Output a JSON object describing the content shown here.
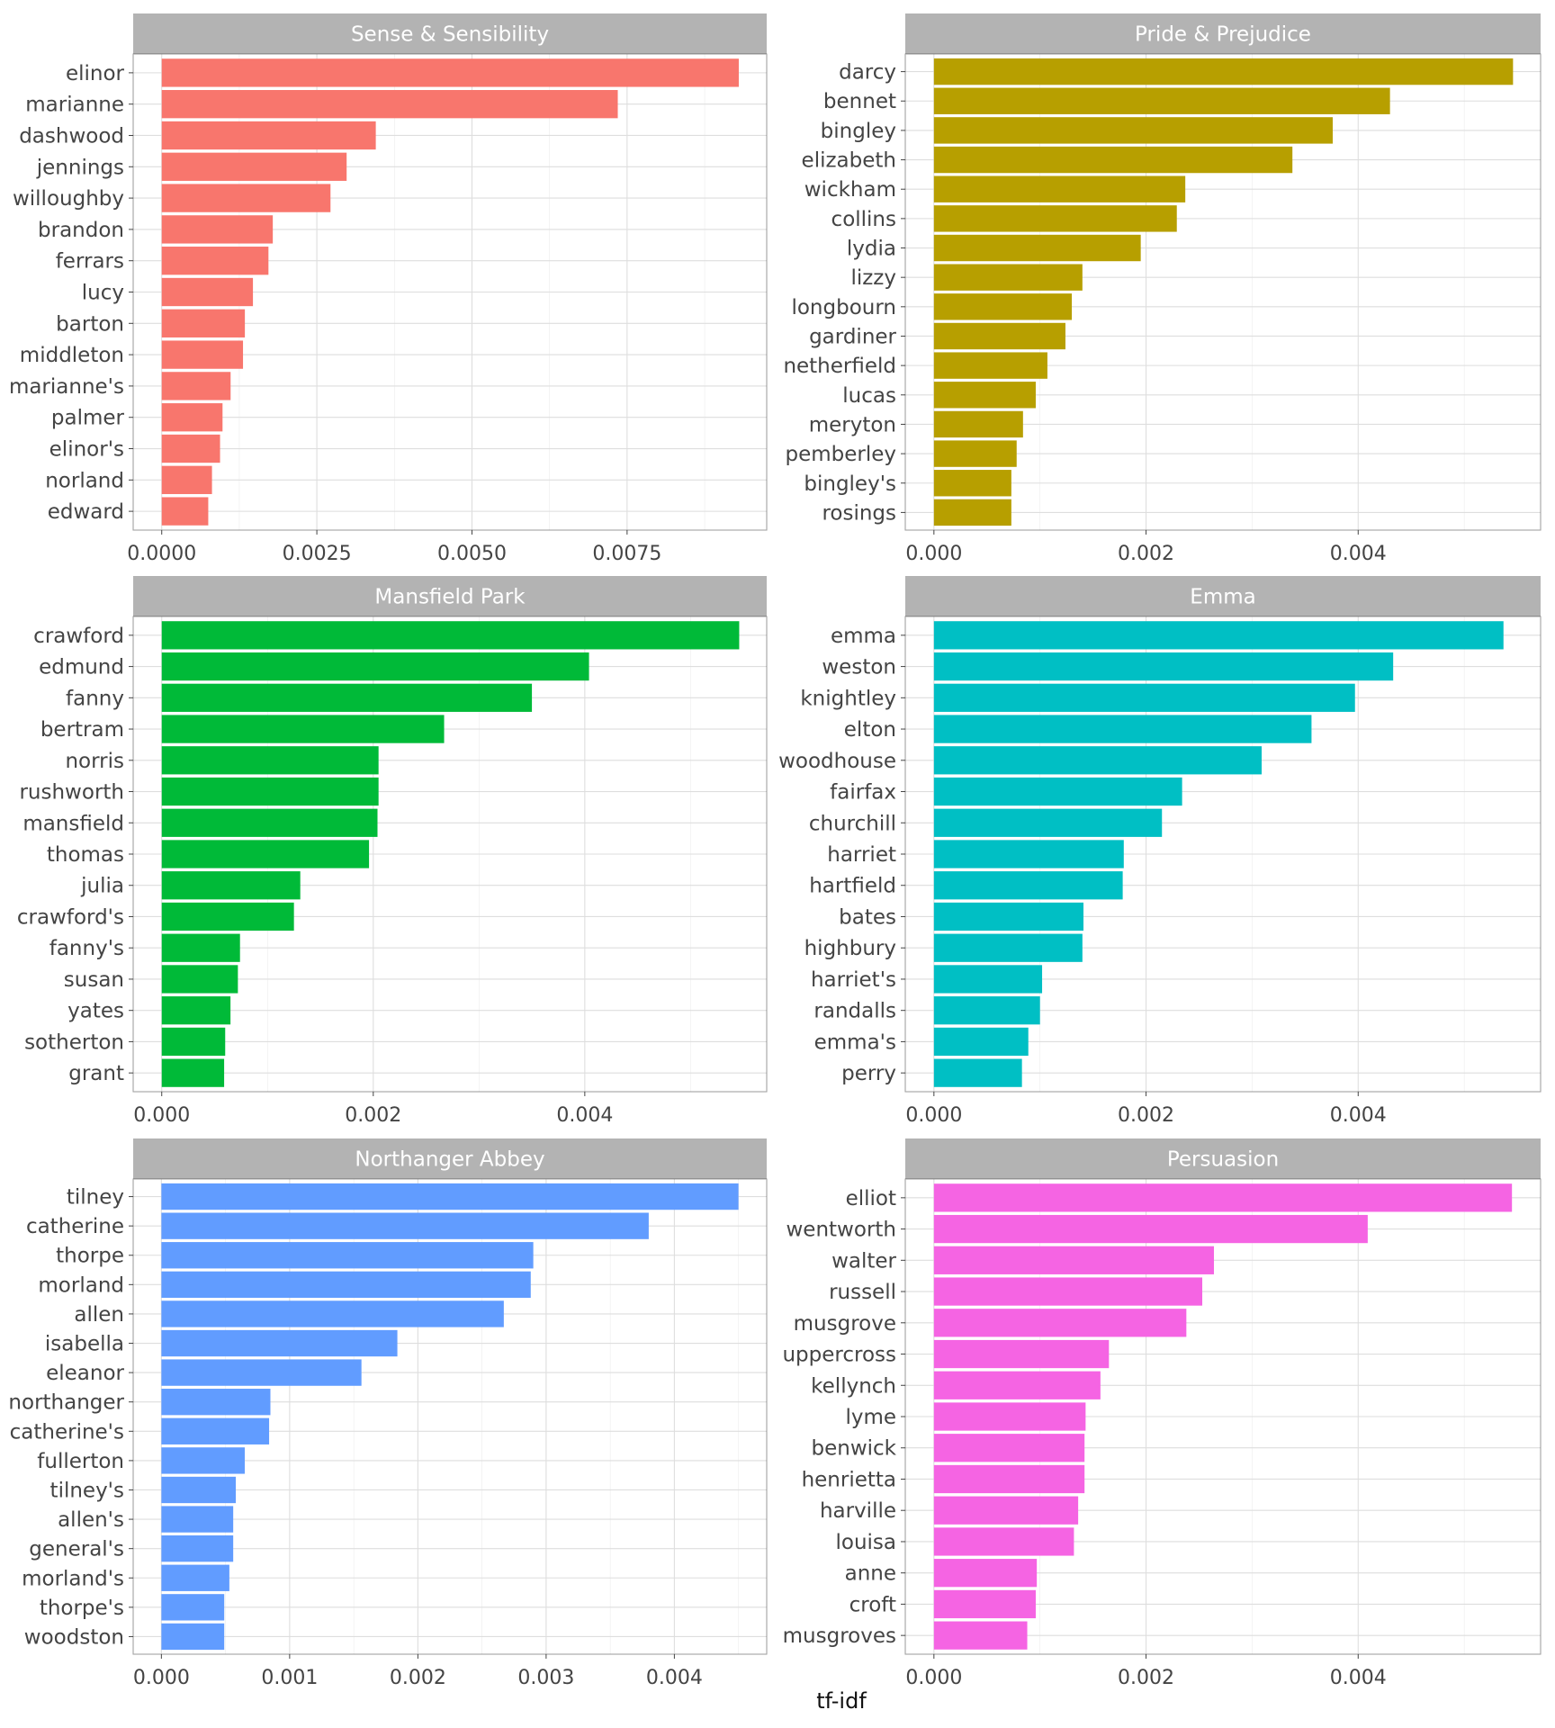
{
  "chart_data": {
    "type": "bar",
    "orientation": "horizontal",
    "layout": "facet_wrap",
    "xlabel": "tf-idf",
    "ylabel": "",
    "grid": true,
    "legend": "none",
    "panels": [
      {
        "title": "Sense & Sensibility",
        "color": "#F8766D",
        "xlim": [
          -0.00046,
          0.00975
        ],
        "ticks": [
          0,
          0.0025,
          0.005,
          0.0075
        ],
        "tick_labels": [
          "0.0000",
          "0.0025",
          "0.0050",
          "0.0075"
        ],
        "categories": [
          "elinor",
          "marianne",
          "dashwood",
          "jennings",
          "willoughby",
          "brandon",
          "ferrars",
          "lucy",
          "barton",
          "middleton",
          "marianne's",
          "palmer",
          "elinor's",
          "norland",
          "edward"
        ],
        "values": [
          0.0093,
          0.00735,
          0.00345,
          0.00298,
          0.00272,
          0.00179,
          0.00172,
          0.00147,
          0.00134,
          0.00131,
          0.00111,
          0.00098,
          0.00094,
          0.00081,
          0.00075
        ]
      },
      {
        "title": "Pride & Prejudice",
        "color": "#B79F00",
        "xlim": [
          -0.00027,
          0.00572
        ],
        "ticks": [
          0,
          0.002,
          0.004
        ],
        "tick_labels": [
          "0.000",
          "0.002",
          "0.004"
        ],
        "categories": [
          "darcy",
          "bennet",
          "bingley",
          "elizabeth",
          "wickham",
          "collins",
          "lydia",
          "lizzy",
          "longbourn",
          "gardiner",
          "netherfield",
          "lucas",
          "meryton",
          "pemberley",
          "bingley's",
          "rosings"
        ],
        "values": [
          0.00546,
          0.0043,
          0.00376,
          0.00338,
          0.00237,
          0.00229,
          0.00195,
          0.0014,
          0.0013,
          0.00124,
          0.00107,
          0.00096,
          0.00084,
          0.00078,
          0.00073,
          0.00073
        ]
      },
      {
        "title": "Mansfield Park",
        "color": "#00BA38",
        "xlim": [
          -0.00027,
          0.00572
        ],
        "ticks": [
          0,
          0.002,
          0.004
        ],
        "tick_labels": [
          "0.000",
          "0.002",
          "0.004"
        ],
        "categories": [
          "crawford",
          "edmund",
          "fanny",
          "bertram",
          "norris",
          "rushworth",
          "mansfield",
          "thomas",
          "julia",
          "crawford's",
          "fanny's",
          "susan",
          "yates",
          "sotherton",
          "grant"
        ],
        "values": [
          0.00546,
          0.00404,
          0.0035,
          0.00267,
          0.00205,
          0.00205,
          0.00204,
          0.00196,
          0.00131,
          0.00125,
          0.00074,
          0.00072,
          0.00065,
          0.0006,
          0.00059
        ]
      },
      {
        "title": "Emma",
        "color": "#00BFC4",
        "xlim": [
          -0.00027,
          0.00572
        ],
        "ticks": [
          0,
          0.002,
          0.004
        ],
        "tick_labels": [
          "0.000",
          "0.002",
          "0.004"
        ],
        "categories": [
          "emma",
          "weston",
          "knightley",
          "elton",
          "woodhouse",
          "fairfax",
          "churchill",
          "harriet",
          "hartfield",
          "bates",
          "highbury",
          "harriet's",
          "randalls",
          "emma's",
          "perry"
        ],
        "values": [
          0.00537,
          0.00433,
          0.00397,
          0.00356,
          0.00309,
          0.00234,
          0.00215,
          0.00179,
          0.00178,
          0.00141,
          0.0014,
          0.00102,
          0.001,
          0.00089,
          0.00083
        ]
      },
      {
        "title": "Northanger Abbey",
        "color": "#619CFF",
        "xlim": [
          -0.00022,
          0.00472
        ],
        "ticks": [
          0,
          0.001,
          0.002,
          0.003,
          0.004
        ],
        "tick_labels": [
          "0.000",
          "0.001",
          "0.002",
          "0.003",
          "0.004"
        ],
        "categories": [
          "tilney",
          "catherine",
          "thorpe",
          "morland",
          "allen",
          "isabella",
          "eleanor",
          "northanger",
          "catherine's",
          "fullerton",
          "tilney's",
          "allen's",
          "general's",
          "morland's",
          "thorpe's",
          "woodston"
        ],
        "values": [
          0.0045,
          0.0038,
          0.0029,
          0.00288,
          0.00267,
          0.00184,
          0.00156,
          0.00085,
          0.00084,
          0.00065,
          0.00058,
          0.00056,
          0.00056,
          0.00053,
          0.00049,
          0.00049
        ]
      },
      {
        "title": "Persuasion",
        "color": "#F564E3",
        "xlim": [
          -0.00027,
          0.00572
        ],
        "ticks": [
          0,
          0.002,
          0.004
        ],
        "tick_labels": [
          "0.000",
          "0.002",
          "0.004"
        ],
        "categories": [
          "elliot",
          "wentworth",
          "walter",
          "russell",
          "musgrove",
          "uppercross",
          "kellynch",
          "lyme",
          "benwick",
          "henrietta",
          "harville",
          "louisa",
          "anne",
          "croft",
          "musgroves"
        ],
        "values": [
          0.00545,
          0.00409,
          0.00264,
          0.00253,
          0.00238,
          0.00165,
          0.00157,
          0.00143,
          0.00142,
          0.00142,
          0.00136,
          0.00132,
          0.00097,
          0.00096,
          0.00088
        ]
      }
    ]
  }
}
